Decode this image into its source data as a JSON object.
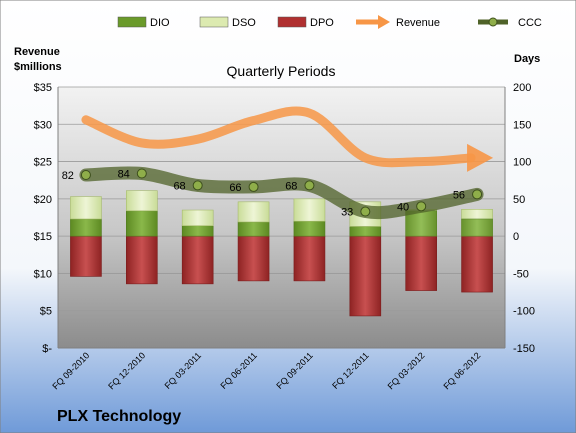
{
  "chart_data": {
    "type": "bar",
    "title": "Quarterly Periods",
    "company": "PLX Technology",
    "left_axis_label": "Revenue\n$millions",
    "right_axis_label": "Days",
    "left_ylim": [
      0,
      35
    ],
    "right_ylim": [
      -150,
      200
    ],
    "left_ticks": [
      "$-",
      "$5",
      "$10",
      "$15",
      "$20",
      "$25",
      "$30",
      "$35"
    ],
    "right_ticks": [
      "-150",
      "-100",
      "-50",
      "0",
      "50",
      "100",
      "150",
      "200"
    ],
    "categories": [
      "FQ 09-2010",
      "FQ 12-2010",
      "FQ 03-2011",
      "FQ 06-2011",
      "FQ 09-2011",
      "FQ 12-2011",
      "FQ 03-2012",
      "FQ 06-2012"
    ],
    "legend": [
      {
        "key": "dio",
        "label": "DIO",
        "color": "#6a9a2a",
        "kind": "box"
      },
      {
        "key": "dso",
        "label": "DSO",
        "color": "#dceab0",
        "kind": "box"
      },
      {
        "key": "dpo",
        "label": "DPO",
        "color": "#b03030",
        "kind": "box"
      },
      {
        "key": "revenue",
        "label": "Revenue",
        "color": "#f79646",
        "kind": "arrow"
      },
      {
        "key": "ccc",
        "label": "CCC",
        "color": "#4f6228",
        "kind": "line-dot"
      }
    ],
    "series": [
      {
        "name": "DIO",
        "axis": "right",
        "values": [
          23,
          34,
          14,
          19,
          20,
          13,
          -2,
          -13
        ]
      },
      {
        "name": "DSO",
        "axis": "right",
        "values": [
          30,
          27,
          21,
          27,
          30,
          33,
          36,
          36
        ]
      },
      {
        "name": "DPO",
        "axis": "right",
        "values": [
          -54,
          -64,
          -64,
          -60,
          -60,
          -107,
          -73,
          -75
        ]
      },
      {
        "name": "Revenue",
        "axis": "left",
        "values": [
          30.6,
          27.5,
          28,
          30.5,
          31.5,
          25.5,
          25,
          25.5
        ]
      },
      {
        "name": "CCC",
        "axis": "right",
        "values": [
          82,
          84,
          68,
          66,
          68,
          33,
          40,
          56
        ]
      }
    ],
    "ccc_labels": [
      "82",
      "84",
      "68",
      "66",
      "68",
      "33",
      "40",
      "56"
    ]
  }
}
